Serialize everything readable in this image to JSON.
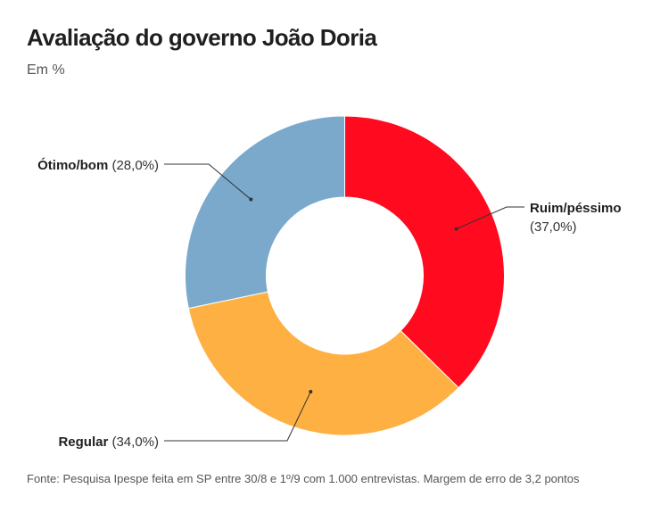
{
  "title": "Avaliação do governo João Doria",
  "subtitle": "Em %",
  "source": "Fonte: Pesquisa Ipespe feita em SP entre 30/8 e 1º/9 com 1.000 entrevistas. Margem de erro de 3,2 pontos",
  "chart_data": {
    "type": "pie",
    "variant": "donut",
    "title": "Avaliação do governo João Doria",
    "subtitle": "Em %",
    "unit": "%",
    "categories": [
      "Ruim/péssimo",
      "Regular",
      "Ótimo/bom"
    ],
    "values": [
      37.0,
      34.0,
      28.0
    ],
    "value_labels": [
      "(37,0%)",
      "(34,0%)",
      "(28,0%)"
    ],
    "colors": [
      "#ff0a1e",
      "#ffb042",
      "#7aa9cb"
    ],
    "start": "12 o'clock",
    "direction": "clockwise"
  }
}
